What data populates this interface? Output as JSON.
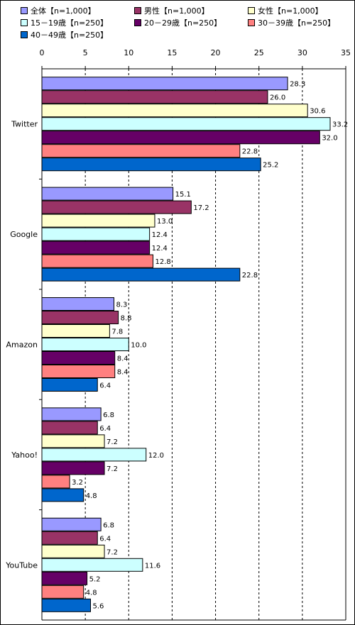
{
  "chart_data": {
    "type": "bar",
    "orientation": "horizontal",
    "categories": [
      "Twitter",
      "Google",
      "Amazon",
      "Yahoo!",
      "YouTube"
    ],
    "xlim": [
      0,
      35
    ],
    "xticks": [
      0,
      5,
      10,
      15,
      20,
      25,
      30,
      35
    ],
    "grid": "vertical dashed",
    "legend_position": "top",
    "series": [
      {
        "name": "全体【n=1,000】",
        "color": "#9999ff",
        "values": [
          28.3,
          15.1,
          8.3,
          6.8,
          6.8
        ],
        "labels": [
          "28.3",
          "15.1",
          "8.3",
          "6.8",
          "6.8"
        ]
      },
      {
        "name": "男性【n=1,000】",
        "color": "#993366",
        "values": [
          26.0,
          17.2,
          8.8,
          6.4,
          6.4
        ],
        "labels": [
          "26.0",
          "17.2",
          "8.8",
          "6.4",
          "6.4"
        ]
      },
      {
        "name": "女性【n=1,000】",
        "color": "#ffffcc",
        "values": [
          30.6,
          13.0,
          7.8,
          7.2,
          7.2
        ],
        "labels": [
          "30.6",
          "13.0",
          "7.8",
          "7.2",
          "7.2"
        ]
      },
      {
        "name": "15－19歳【n=250】",
        "color": "#ccffff",
        "values": [
          33.2,
          12.4,
          10.0,
          12.0,
          11.6
        ],
        "labels": [
          "33.2",
          "12.4",
          "10.0",
          "12.0",
          "11.6"
        ]
      },
      {
        "name": "20－29歳【n=250】",
        "color": "#660066",
        "values": [
          32.0,
          12.4,
          8.4,
          7.2,
          5.2
        ],
        "labels": [
          "32.0",
          "12.4",
          "8.4",
          "7.2",
          "5.2"
        ]
      },
      {
        "name": "30－39歳【n=250】",
        "color": "#ff8080",
        "values": [
          22.8,
          12.8,
          8.4,
          3.2,
          4.8
        ],
        "labels": [
          "22.8",
          "12.8",
          "8.4",
          "3.2",
          "4.8"
        ]
      },
      {
        "name": "40－49歳【n=250】",
        "color": "#0066cc",
        "values": [
          25.2,
          22.8,
          6.4,
          4.8,
          5.6
        ],
        "labels": [
          "25.2",
          "22.8",
          "6.4",
          "4.8",
          "5.6"
        ]
      }
    ]
  }
}
